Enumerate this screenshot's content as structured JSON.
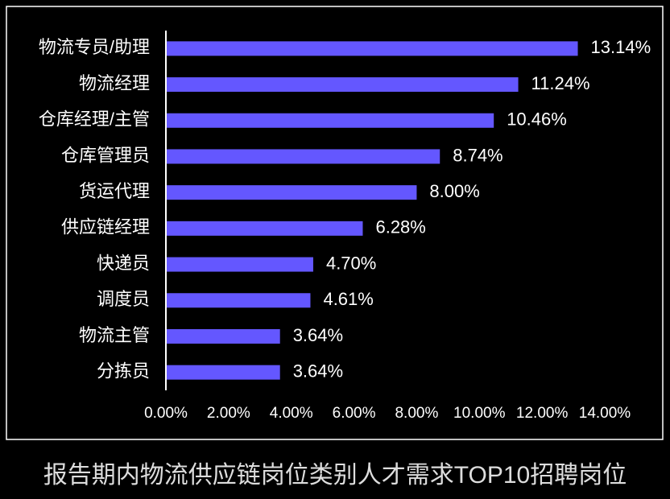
{
  "chart_data": {
    "type": "hbar",
    "caption": "报告期内物流供应链岗位类别人才需求TOP10招聘岗位",
    "categories": [
      "物流专员/助理",
      "物流经理",
      "仓库经理/主管",
      "仓库管理员",
      "货运代理",
      "供应链经理",
      "快递员",
      "调度员",
      "物流主管",
      "分拣员"
    ],
    "values": [
      13.14,
      11.24,
      10.46,
      8.74,
      8.0,
      6.28,
      4.7,
      4.61,
      3.64,
      3.64
    ],
    "value_labels": [
      "13.14%",
      "11.24%",
      "10.46%",
      "8.74%",
      "8.00%",
      "6.28%",
      "4.70%",
      "4.61%",
      "3.64%",
      "3.64%"
    ],
    "color": "#6457ff",
    "xlim": [
      0,
      14
    ],
    "xticks": [
      {
        "value": 0,
        "label": "0.00%"
      },
      {
        "value": 2,
        "label": "2.00%"
      },
      {
        "value": 4,
        "label": "4.00%"
      },
      {
        "value": 6,
        "label": "6.00%"
      },
      {
        "value": 8,
        "label": "8.00%"
      },
      {
        "value": 10,
        "label": "10.00%"
      },
      {
        "value": 12,
        "label": "12.00%"
      },
      {
        "value": 14,
        "label": "14.00%"
      }
    ]
  }
}
